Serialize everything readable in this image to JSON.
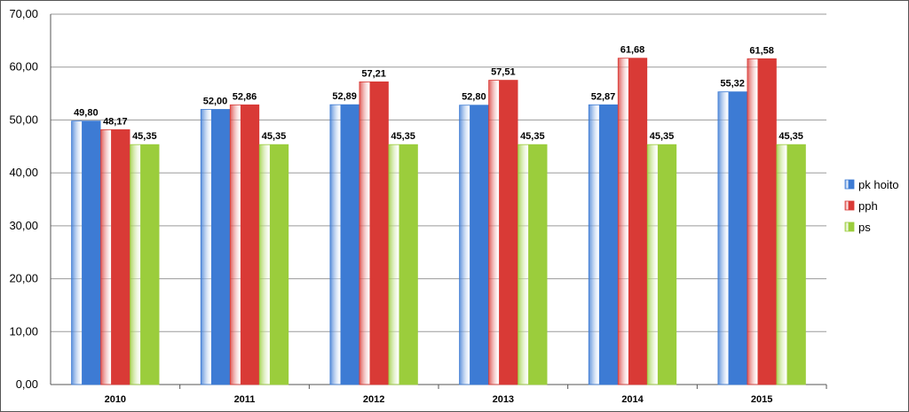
{
  "chart_data": {
    "type": "bar",
    "title": "",
    "xlabel": "",
    "ylabel": "",
    "ylim": [
      0,
      70
    ],
    "y_ticks": [
      "0,00",
      "10,00",
      "20,00",
      "30,00",
      "40,00",
      "50,00",
      "60,00",
      "70,00"
    ],
    "grid": true,
    "legend_position": "right",
    "categories": [
      "2010",
      "2011",
      "2012",
      "2013",
      "2014",
      "2015"
    ],
    "series": [
      {
        "name": "pk hoito",
        "color": "#3d7bd4",
        "values": [
          49.8,
          52.0,
          52.89,
          52.8,
          52.87,
          55.32
        ],
        "labels": [
          "49,80",
          "52,00",
          "52,89",
          "52,80",
          "52,87",
          "55,32"
        ]
      },
      {
        "name": "pph",
        "color": "#d93a36",
        "values": [
          48.17,
          52.86,
          57.21,
          57.51,
          61.68,
          61.58
        ],
        "labels": [
          "48,17",
          "52,86",
          "57,21",
          "57,51",
          "61,68",
          "61,58"
        ]
      },
      {
        "name": "ps",
        "color": "#9bcd3c",
        "values": [
          45.35,
          45.35,
          45.35,
          45.35,
          45.35,
          45.35
        ],
        "labels": [
          "45,35",
          "45,35",
          "45,35",
          "45,35",
          "45,35",
          "45,35"
        ]
      }
    ]
  }
}
